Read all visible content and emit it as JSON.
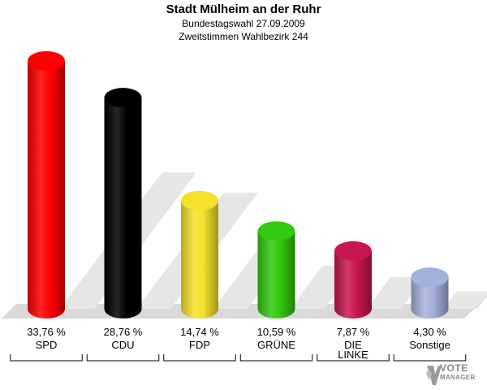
{
  "chart_data": {
    "type": "bar",
    "title": "Stadt Mülheim an der Ruhr",
    "subtitle": "Bundestagswahl 27.09.2009",
    "subtitle2": "Zweitstimmen Wahlbezirk 244",
    "categories": [
      "SPD",
      "CDU",
      "FDP",
      "GRÜNE",
      "DIE LINKE",
      "Sonstige"
    ],
    "category_lines": [
      [
        "SPD"
      ],
      [
        "CDU"
      ],
      [
        "FDP"
      ],
      [
        "GRÜNE"
      ],
      [
        "DIE",
        "LINKE"
      ],
      [
        "Sonstige"
      ]
    ],
    "values": [
      33.76,
      28.76,
      14.74,
      10.59,
      7.87,
      4.3
    ],
    "value_labels": [
      "33,76 %",
      "28,76 %",
      "14,74 %",
      "10,59 %",
      "7,87 %",
      "4,30 %"
    ],
    "colors": [
      "#ff0000",
      "#000000",
      "#f5e12a",
      "#33c80f",
      "#c8174f",
      "#a4b0dc"
    ],
    "ylim": [
      0,
      33.76
    ],
    "grid": false,
    "legend": "none"
  },
  "logo": {
    "line1": "VOTE",
    "line2": "MANAGER"
  }
}
